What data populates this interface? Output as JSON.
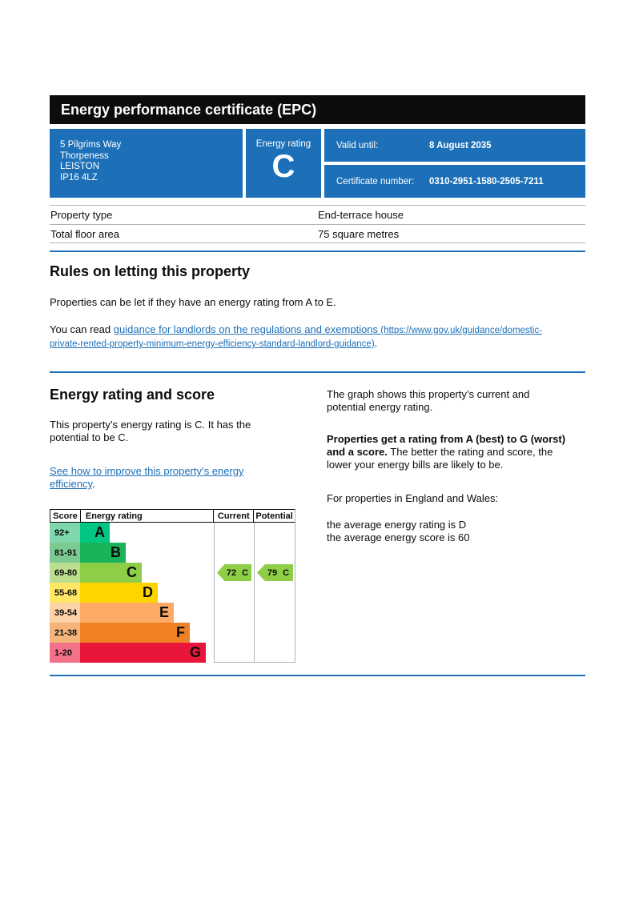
{
  "page": {
    "title": "Energy performance certificate (EPC)"
  },
  "summary": {
    "address_lines": [
      "5 Pilgrims Way",
      "Thorpeness",
      "LEISTON",
      "IP16 4LZ"
    ],
    "energy_rating_label": "Energy rating",
    "energy_rating_value": "C",
    "valid_until_label": "Valid until:",
    "valid_until_value": "8 August 2035",
    "certificate_number_label": "Certificate number:",
    "certificate_number_value": "0310-2951-1580-2505-7211"
  },
  "property_details": {
    "rows": [
      {
        "label": "Property type",
        "value": "End-terrace house"
      },
      {
        "label": "Total floor area",
        "value": "75 square metres"
      }
    ]
  },
  "rules_section": {
    "heading": "Rules on letting this property",
    "paragraph1": "Properties can be let if they have an energy rating from A to E.",
    "paragraph2_prefix": "You can read ",
    "link_text": "guidance for landlords on the regulations and exemptions",
    "link_url_text": " (https://www.gov.uk/guidance/domestic-\nprivate-rented-property-minimum-energy-efficiency-standard-landlord-guidance)",
    "paragraph2_suffix": "."
  },
  "rating_section": {
    "heading": "Energy rating and score",
    "left_paragraph": "This property’s energy rating is C. It has the\npotential to be C.",
    "improve_link_text": "See how to improve this property’s energy\nefficiency",
    "improve_link_suffix": ".",
    "right_paragraph1": "The graph shows this property’s current and\npotential energy rating.",
    "right_paragraph2_bold": "Properties get a rating from A (best) to G (worst)\nand a score.",
    "right_paragraph2_rest": " The better the rating and score, the\nlower your energy bills are likely to be.",
    "right_paragraph3": "For properties in England and Wales:",
    "right_paragraph4": "the average energy rating is D\nthe average energy score is 60"
  },
  "chart_data": {
    "type": "bar",
    "title": "EPC energy rating bands with current and potential scores",
    "headers": {
      "score": "Score",
      "rating": "Energy rating",
      "current": "Current",
      "potential": "Potential"
    },
    "bands": [
      {
        "range": "92+",
        "letter": "A",
        "color": "#00c781",
        "tint": "#7fd8ab"
      },
      {
        "range": "81-91",
        "letter": "B",
        "color": "#19b459",
        "tint": "#7cca92"
      },
      {
        "range": "69-80",
        "letter": "C",
        "color": "#8dce46",
        "tint": "#bcde8f"
      },
      {
        "range": "55-68",
        "letter": "D",
        "color": "#ffd500",
        "tint": "#ffe664"
      },
      {
        "range": "39-54",
        "letter": "E",
        "color": "#fcaa65",
        "tint": "#fdd2a7"
      },
      {
        "range": "21-38",
        "letter": "F",
        "color": "#ef8023",
        "tint": "#f5b479"
      },
      {
        "range": "1-20",
        "letter": "G",
        "color": "#e9153b",
        "tint": "#f3728a"
      }
    ],
    "current": {
      "score": "72",
      "letter": "C",
      "color": "#8dce46"
    },
    "potential": {
      "score": "79",
      "letter": "C",
      "color": "#8dce46"
    }
  },
  "colors": {
    "govuk_blue": "#1d70b8",
    "bar_black": "#0b0c0c",
    "link_blue": "#1d70b8",
    "border_grey": "#b1b4b6"
  }
}
